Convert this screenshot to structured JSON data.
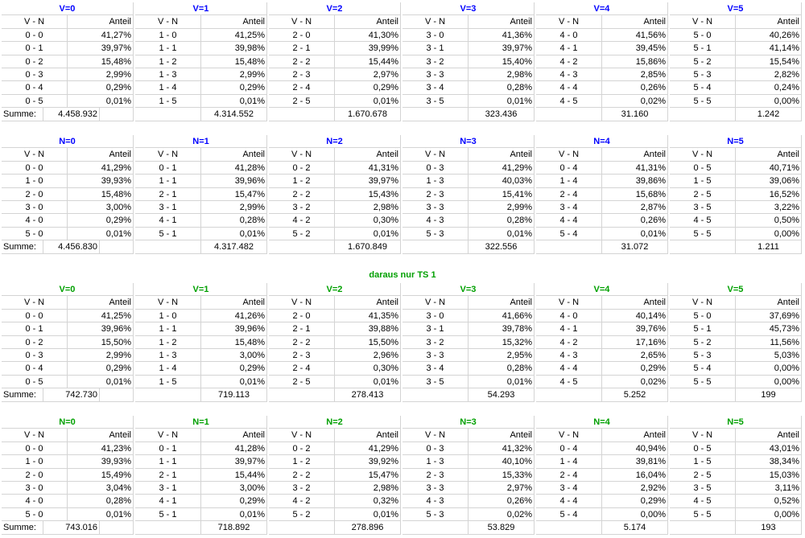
{
  "colors": {
    "v_header_1": "#0000ff",
    "n_header_1": "#0000ff",
    "green": "#00a000",
    "grid": "#d4d4d4"
  },
  "labels": {
    "vn": "V - N",
    "anteil": "Anteil",
    "summe": "Summe:"
  },
  "subtitle": "daraus nur TS 1",
  "sections": [
    {
      "headers": [
        "V=0",
        "V=1",
        "V=2",
        "V=3",
        "V=4",
        "V=5"
      ],
      "color": "blue",
      "blocks": [
        {
          "rows": [
            [
              "0 - 0",
              "41,27%"
            ],
            [
              "0 - 1",
              "39,97%"
            ],
            [
              "0 - 2",
              "15,48%"
            ],
            [
              "0 - 3",
              "2,99%"
            ],
            [
              "0 - 4",
              "0,29%"
            ],
            [
              "0 - 5",
              "0,01%"
            ]
          ],
          "sum": "4.458.932"
        },
        {
          "rows": [
            [
              "1 - 0",
              "41,25%"
            ],
            [
              "1 - 1",
              "39,98%"
            ],
            [
              "1 - 2",
              "15,48%"
            ],
            [
              "1 - 3",
              "2,99%"
            ],
            [
              "1 - 4",
              "0,29%"
            ],
            [
              "1 - 5",
              "0,01%"
            ]
          ],
          "sum": "4.314.552"
        },
        {
          "rows": [
            [
              "2 - 0",
              "41,30%"
            ],
            [
              "2 - 1",
              "39,99%"
            ],
            [
              "2 - 2",
              "15,44%"
            ],
            [
              "2 - 3",
              "2,97%"
            ],
            [
              "2 - 4",
              "0,29%"
            ],
            [
              "2 - 5",
              "0,01%"
            ]
          ],
          "sum": "1.670.678"
        },
        {
          "rows": [
            [
              "3 - 0",
              "41,36%"
            ],
            [
              "3 - 1",
              "39,97%"
            ],
            [
              "3 - 2",
              "15,40%"
            ],
            [
              "3 - 3",
              "2,98%"
            ],
            [
              "3 - 4",
              "0,28%"
            ],
            [
              "3 - 5",
              "0,01%"
            ]
          ],
          "sum": "323.436"
        },
        {
          "rows": [
            [
              "4 - 0",
              "41,56%"
            ],
            [
              "4 - 1",
              "39,45%"
            ],
            [
              "4 - 2",
              "15,86%"
            ],
            [
              "4 - 3",
              "2,85%"
            ],
            [
              "4 - 4",
              "0,26%"
            ],
            [
              "4 - 5",
              "0,02%"
            ]
          ],
          "sum": "31.160"
        },
        {
          "rows": [
            [
              "5 - 0",
              "40,26%"
            ],
            [
              "5 - 1",
              "41,14%"
            ],
            [
              "5 - 2",
              "15,54%"
            ],
            [
              "5 - 3",
              "2,82%"
            ],
            [
              "5 - 4",
              "0,24%"
            ],
            [
              "5 - 5",
              "0,00%"
            ]
          ],
          "sum": "1.242"
        }
      ]
    },
    {
      "headers": [
        "N=0",
        "N=1",
        "N=2",
        "N=3",
        "N=4",
        "N=5"
      ],
      "color": "blue",
      "blocks": [
        {
          "rows": [
            [
              "0 - 0",
              "41,29%"
            ],
            [
              "1 - 0",
              "39,93%"
            ],
            [
              "2 - 0",
              "15,48%"
            ],
            [
              "3 - 0",
              "3,00%"
            ],
            [
              "4 - 0",
              "0,29%"
            ],
            [
              "5 - 0",
              "0,01%"
            ]
          ],
          "sum": "4.456.830"
        },
        {
          "rows": [
            [
              "0 - 1",
              "41,28%"
            ],
            [
              "1 - 1",
              "39,96%"
            ],
            [
              "2 - 1",
              "15,47%"
            ],
            [
              "3 - 1",
              "2,99%"
            ],
            [
              "4 - 1",
              "0,28%"
            ],
            [
              "5 - 1",
              "0,01%"
            ]
          ],
          "sum": "4.317.482"
        },
        {
          "rows": [
            [
              "0 - 2",
              "41,31%"
            ],
            [
              "1 - 2",
              "39,97%"
            ],
            [
              "2 - 2",
              "15,43%"
            ],
            [
              "3 - 2",
              "2,98%"
            ],
            [
              "4 - 2",
              "0,30%"
            ],
            [
              "5 - 2",
              "0,01%"
            ]
          ],
          "sum": "1.670.849"
        },
        {
          "rows": [
            [
              "0 - 3",
              "41,29%"
            ],
            [
              "1 - 3",
              "40,03%"
            ],
            [
              "2 - 3",
              "15,41%"
            ],
            [
              "3 - 3",
              "2,99%"
            ],
            [
              "4 - 3",
              "0,28%"
            ],
            [
              "5 - 3",
              "0,01%"
            ]
          ],
          "sum": "322.556"
        },
        {
          "rows": [
            [
              "0 - 4",
              "41,31%"
            ],
            [
              "1 - 4",
              "39,86%"
            ],
            [
              "2 - 4",
              "15,68%"
            ],
            [
              "3 - 4",
              "2,87%"
            ],
            [
              "4 - 4",
              "0,26%"
            ],
            [
              "5 - 4",
              "0,01%"
            ]
          ],
          "sum": "31.072"
        },
        {
          "rows": [
            [
              "0 - 5",
              "40,71%"
            ],
            [
              "1 - 5",
              "39,06%"
            ],
            [
              "2 - 5",
              "16,52%"
            ],
            [
              "3 - 5",
              "3,22%"
            ],
            [
              "4 - 5",
              "0,50%"
            ],
            [
              "5 - 5",
              "0,00%"
            ]
          ],
          "sum": "1.211"
        }
      ]
    },
    {
      "headers": [
        "V=0",
        "V=1",
        "V=2",
        "V=3",
        "V=4",
        "V=5"
      ],
      "color": "green",
      "blocks": [
        {
          "rows": [
            [
              "0 - 0",
              "41,25%"
            ],
            [
              "0 - 1",
              "39,96%"
            ],
            [
              "0 - 2",
              "15,50%"
            ],
            [
              "0 - 3",
              "2,99%"
            ],
            [
              "0 - 4",
              "0,29%"
            ],
            [
              "0 - 5",
              "0,01%"
            ]
          ],
          "sum": "742.730"
        },
        {
          "rows": [
            [
              "1 - 0",
              "41,26%"
            ],
            [
              "1 - 1",
              "39,96%"
            ],
            [
              "1 - 2",
              "15,48%"
            ],
            [
              "1 - 3",
              "3,00%"
            ],
            [
              "1 - 4",
              "0,29%"
            ],
            [
              "1 - 5",
              "0,01%"
            ]
          ],
          "sum": "719.113"
        },
        {
          "rows": [
            [
              "2 - 0",
              "41,35%"
            ],
            [
              "2 - 1",
              "39,88%"
            ],
            [
              "2 - 2",
              "15,50%"
            ],
            [
              "2 - 3",
              "2,96%"
            ],
            [
              "2 - 4",
              "0,30%"
            ],
            [
              "2 - 5",
              "0,01%"
            ]
          ],
          "sum": "278.413"
        },
        {
          "rows": [
            [
              "3 - 0",
              "41,66%"
            ],
            [
              "3 - 1",
              "39,78%"
            ],
            [
              "3 - 2",
              "15,32%"
            ],
            [
              "3 - 3",
              "2,95%"
            ],
            [
              "3 - 4",
              "0,28%"
            ],
            [
              "3 - 5",
              "0,01%"
            ]
          ],
          "sum": "54.293"
        },
        {
          "rows": [
            [
              "4 - 0",
              "40,14%"
            ],
            [
              "4 - 1",
              "39,76%"
            ],
            [
              "4 - 2",
              "17,16%"
            ],
            [
              "4 - 3",
              "2,65%"
            ],
            [
              "4 - 4",
              "0,29%"
            ],
            [
              "4 - 5",
              "0,02%"
            ]
          ],
          "sum": "5.252"
        },
        {
          "rows": [
            [
              "5 - 0",
              "37,69%"
            ],
            [
              "5 - 1",
              "45,73%"
            ],
            [
              "5 - 2",
              "11,56%"
            ],
            [
              "5 - 3",
              "5,03%"
            ],
            [
              "5 - 4",
              "0,00%"
            ],
            [
              "5 - 5",
              "0,00%"
            ]
          ],
          "sum": "199"
        }
      ]
    },
    {
      "headers": [
        "N=0",
        "N=1",
        "N=2",
        "N=3",
        "N=4",
        "N=5"
      ],
      "color": "green",
      "blocks": [
        {
          "rows": [
            [
              "0 - 0",
              "41,23%"
            ],
            [
              "1 - 0",
              "39,93%"
            ],
            [
              "2 - 0",
              "15,49%"
            ],
            [
              "3 - 0",
              "3,04%"
            ],
            [
              "4 - 0",
              "0,28%"
            ],
            [
              "5 - 0",
              "0,01%"
            ]
          ],
          "sum": "743.016"
        },
        {
          "rows": [
            [
              "0 - 1",
              "41,28%"
            ],
            [
              "1 - 1",
              "39,97%"
            ],
            [
              "2 - 1",
              "15,44%"
            ],
            [
              "3 - 1",
              "3,00%"
            ],
            [
              "4 - 1",
              "0,29%"
            ],
            [
              "5 - 1",
              "0,01%"
            ]
          ],
          "sum": "718.892"
        },
        {
          "rows": [
            [
              "0 - 2",
              "41,29%"
            ],
            [
              "1 - 2",
              "39,92%"
            ],
            [
              "2 - 2",
              "15,47%"
            ],
            [
              "3 - 2",
              "2,98%"
            ],
            [
              "4 - 2",
              "0,32%"
            ],
            [
              "5 - 2",
              "0,01%"
            ]
          ],
          "sum": "278.896"
        },
        {
          "rows": [
            [
              "0 - 3",
              "41,32%"
            ],
            [
              "1 - 3",
              "40,10%"
            ],
            [
              "2 - 3",
              "15,33%"
            ],
            [
              "3 - 3",
              "2,97%"
            ],
            [
              "4 - 3",
              "0,26%"
            ],
            [
              "5 - 3",
              "0,02%"
            ]
          ],
          "sum": "53.829"
        },
        {
          "rows": [
            [
              "0 - 4",
              "40,94%"
            ],
            [
              "1 - 4",
              "39,81%"
            ],
            [
              "2 - 4",
              "16,04%"
            ],
            [
              "3 - 4",
              "2,92%"
            ],
            [
              "4 - 4",
              "0,29%"
            ],
            [
              "5 - 4",
              "0,00%"
            ]
          ],
          "sum": "5.174"
        },
        {
          "rows": [
            [
              "0 - 5",
              "43,01%"
            ],
            [
              "1 - 5",
              "38,34%"
            ],
            [
              "2 - 5",
              "15,03%"
            ],
            [
              "3 - 5",
              "3,11%"
            ],
            [
              "4 - 5",
              "0,52%"
            ],
            [
              "5 - 5",
              "0,00%"
            ]
          ],
          "sum": "193"
        }
      ]
    }
  ]
}
